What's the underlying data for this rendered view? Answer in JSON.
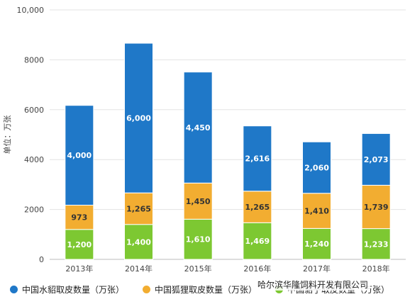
{
  "chart_data": {
    "type": "bar",
    "stacked": true,
    "categories": [
      "2013年",
      "2014年",
      "2015年",
      "2016年",
      "2017年",
      "2018年"
    ],
    "series": [
      {
        "name": "中国貉子取皮数量（万张）",
        "values": [
          1200,
          1400,
          1610,
          1469,
          1240,
          1233
        ],
        "labels": [
          "1,200",
          "1,400",
          "1,610",
          "1,469",
          "1,240",
          "1,233"
        ],
        "color": "#7dc832"
      },
      {
        "name": "中国狐狸取皮数量（万张）",
        "values": [
          973,
          1265,
          1450,
          1265,
          1410,
          1739
        ],
        "labels": [
          "973",
          "1,265",
          "1,450",
          "1,265",
          "1,410",
          "1,739"
        ],
        "color": "#f2ad31"
      },
      {
        "name": "中国水貂取皮数量（万张）",
        "values": [
          4000,
          6000,
          4450,
          2616,
          2060,
          2073
        ],
        "labels": [
          "4,000",
          "6,000",
          "4,450",
          "2,616",
          "2,060",
          "2,073"
        ],
        "color": "#1f78c8"
      }
    ],
    "ylabel": "单位：万张",
    "ylim": [
      0,
      10000
    ],
    "yticks": [
      0,
      2000,
      4000,
      6000,
      8000,
      10000
    ],
    "ytick_labels": [
      "0",
      "2000",
      "4000",
      "6000",
      "8000",
      "10,000"
    ],
    "grid": true,
    "legend_position": "bottom"
  },
  "legend_order": [
    2,
    1,
    0
  ],
  "watermark": "哈尔滨华隆饲料开发有限公司"
}
